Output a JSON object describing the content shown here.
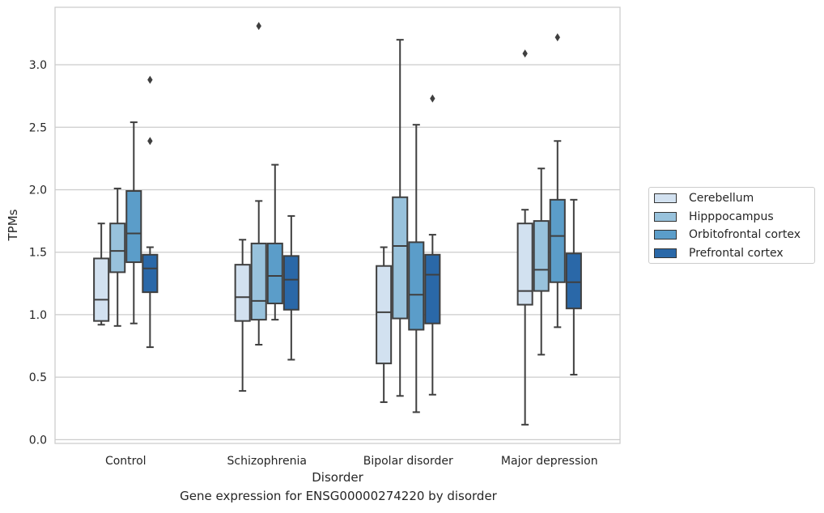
{
  "chart_data": {
    "type": "box",
    "caption": "Gene expression for ENSG00000274220 by disorder",
    "xlabel": "Disorder",
    "ylabel": "TPMs",
    "ylim": [
      -0.03,
      3.46
    ],
    "yticks": [
      "0.0",
      "0.5",
      "1.0",
      "1.5",
      "2.0",
      "2.5",
      "3.0"
    ],
    "grid": "horizontal",
    "legend_position": "right",
    "categories": [
      "Control",
      "Schizophrenia",
      "Bipolar disorder",
      "Major depression"
    ],
    "series": [
      {
        "name": "Cerebellum",
        "color": "#d2e1f0",
        "boxes": [
          {
            "whislo": 0.92,
            "q1": 0.95,
            "median": 1.12,
            "q3": 1.45,
            "whishi": 1.73,
            "fliers": []
          },
          {
            "whislo": 0.39,
            "q1": 0.95,
            "median": 1.14,
            "q3": 1.4,
            "whishi": 1.6,
            "fliers": []
          },
          {
            "whislo": 0.3,
            "q1": 0.61,
            "median": 1.02,
            "q3": 1.39,
            "whishi": 1.54,
            "fliers": []
          },
          {
            "whislo": 0.12,
            "q1": 1.08,
            "median": 1.19,
            "q3": 1.73,
            "whishi": 1.84,
            "fliers": [
              3.09
            ]
          }
        ]
      },
      {
        "name": "Hipppocampus",
        "color": "#98c2dc",
        "boxes": [
          {
            "whislo": 0.91,
            "q1": 1.34,
            "median": 1.51,
            "q3": 1.73,
            "whishi": 2.01,
            "fliers": []
          },
          {
            "whislo": 0.76,
            "q1": 0.96,
            "median": 1.11,
            "q3": 1.57,
            "whishi": 1.91,
            "fliers": [
              3.31
            ]
          },
          {
            "whislo": 0.35,
            "q1": 0.97,
            "median": 1.55,
            "q3": 1.94,
            "whishi": 3.2,
            "fliers": []
          },
          {
            "whislo": 0.68,
            "q1": 1.19,
            "median": 1.36,
            "q3": 1.75,
            "whishi": 2.17,
            "fliers": []
          }
        ]
      },
      {
        "name": "Orbitofrontal cortex",
        "color": "#5b9dc9",
        "boxes": [
          {
            "whislo": 0.93,
            "q1": 1.42,
            "median": 1.65,
            "q3": 1.99,
            "whishi": 2.54,
            "fliers": []
          },
          {
            "whislo": 0.96,
            "q1": 1.09,
            "median": 1.31,
            "q3": 1.57,
            "whishi": 2.2,
            "fliers": []
          },
          {
            "whislo": 0.22,
            "q1": 0.88,
            "median": 1.16,
            "q3": 1.58,
            "whishi": 2.52,
            "fliers": []
          },
          {
            "whislo": 0.9,
            "q1": 1.26,
            "median": 1.63,
            "q3": 1.92,
            "whishi": 2.39,
            "fliers": [
              3.22
            ]
          }
        ]
      },
      {
        "name": "Prefrontal cortex",
        "color": "#2a68a8",
        "boxes": [
          {
            "whislo": 0.74,
            "q1": 1.18,
            "median": 1.37,
            "q3": 1.48,
            "whishi": 1.54,
            "fliers": [
              2.39,
              2.88
            ]
          },
          {
            "whislo": 0.64,
            "q1": 1.04,
            "median": 1.28,
            "q3": 1.47,
            "whishi": 1.79,
            "fliers": []
          },
          {
            "whislo": 0.36,
            "q1": 0.93,
            "median": 1.32,
            "q3": 1.48,
            "whishi": 1.64,
            "fliers": [
              2.73
            ]
          },
          {
            "whislo": 0.52,
            "q1": 1.05,
            "median": 1.26,
            "q3": 1.49,
            "whishi": 1.92,
            "fliers": []
          }
        ]
      }
    ]
  }
}
